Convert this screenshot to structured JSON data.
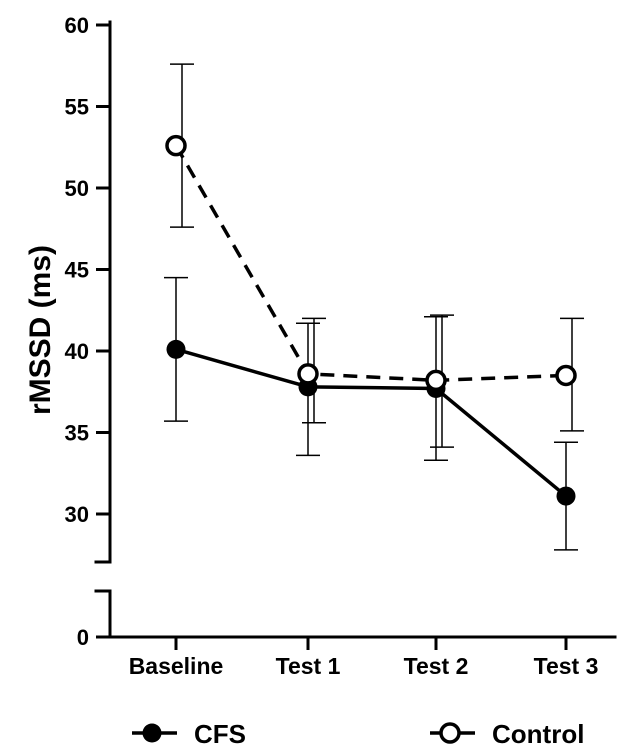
{
  "chart_data": {
    "type": "line",
    "title": "",
    "xlabel": "",
    "ylabel": "rMSSD (ms)",
    "categories": [
      "Baseline",
      "Test 1",
      "Test 2",
      "Test 3"
    ],
    "y_ticks": [
      0,
      30,
      35,
      40,
      45,
      50,
      55,
      60
    ],
    "y_tick_labels": [
      "0",
      "30",
      "35",
      "40",
      "45",
      "50",
      "55",
      "60"
    ],
    "axis_break": true,
    "ylim_upper": [
      27,
      60
    ],
    "ylim_lower": [
      0,
      0
    ],
    "grid": false,
    "legend_position": "bottom",
    "series": [
      {
        "name": "CFS",
        "marker": "filled-circle",
        "line_style": "solid",
        "values": [
          40.1,
          37.8,
          37.7,
          31.1
        ],
        "error_low": [
          35.7,
          33.6,
          33.3,
          27.8
        ],
        "error_high": [
          44.5,
          41.7,
          42.1,
          34.4
        ]
      },
      {
        "name": "Control",
        "marker": "open-circle",
        "line_style": "dashed",
        "values": [
          52.6,
          38.6,
          38.2,
          38.5
        ],
        "error_low": [
          47.6,
          35.6,
          34.1,
          35.1
        ],
        "error_high": [
          57.6,
          42.0,
          42.2,
          42.0
        ]
      }
    ],
    "colors": {
      "line": "#000000",
      "marker_fill_open": "#ffffff"
    }
  }
}
